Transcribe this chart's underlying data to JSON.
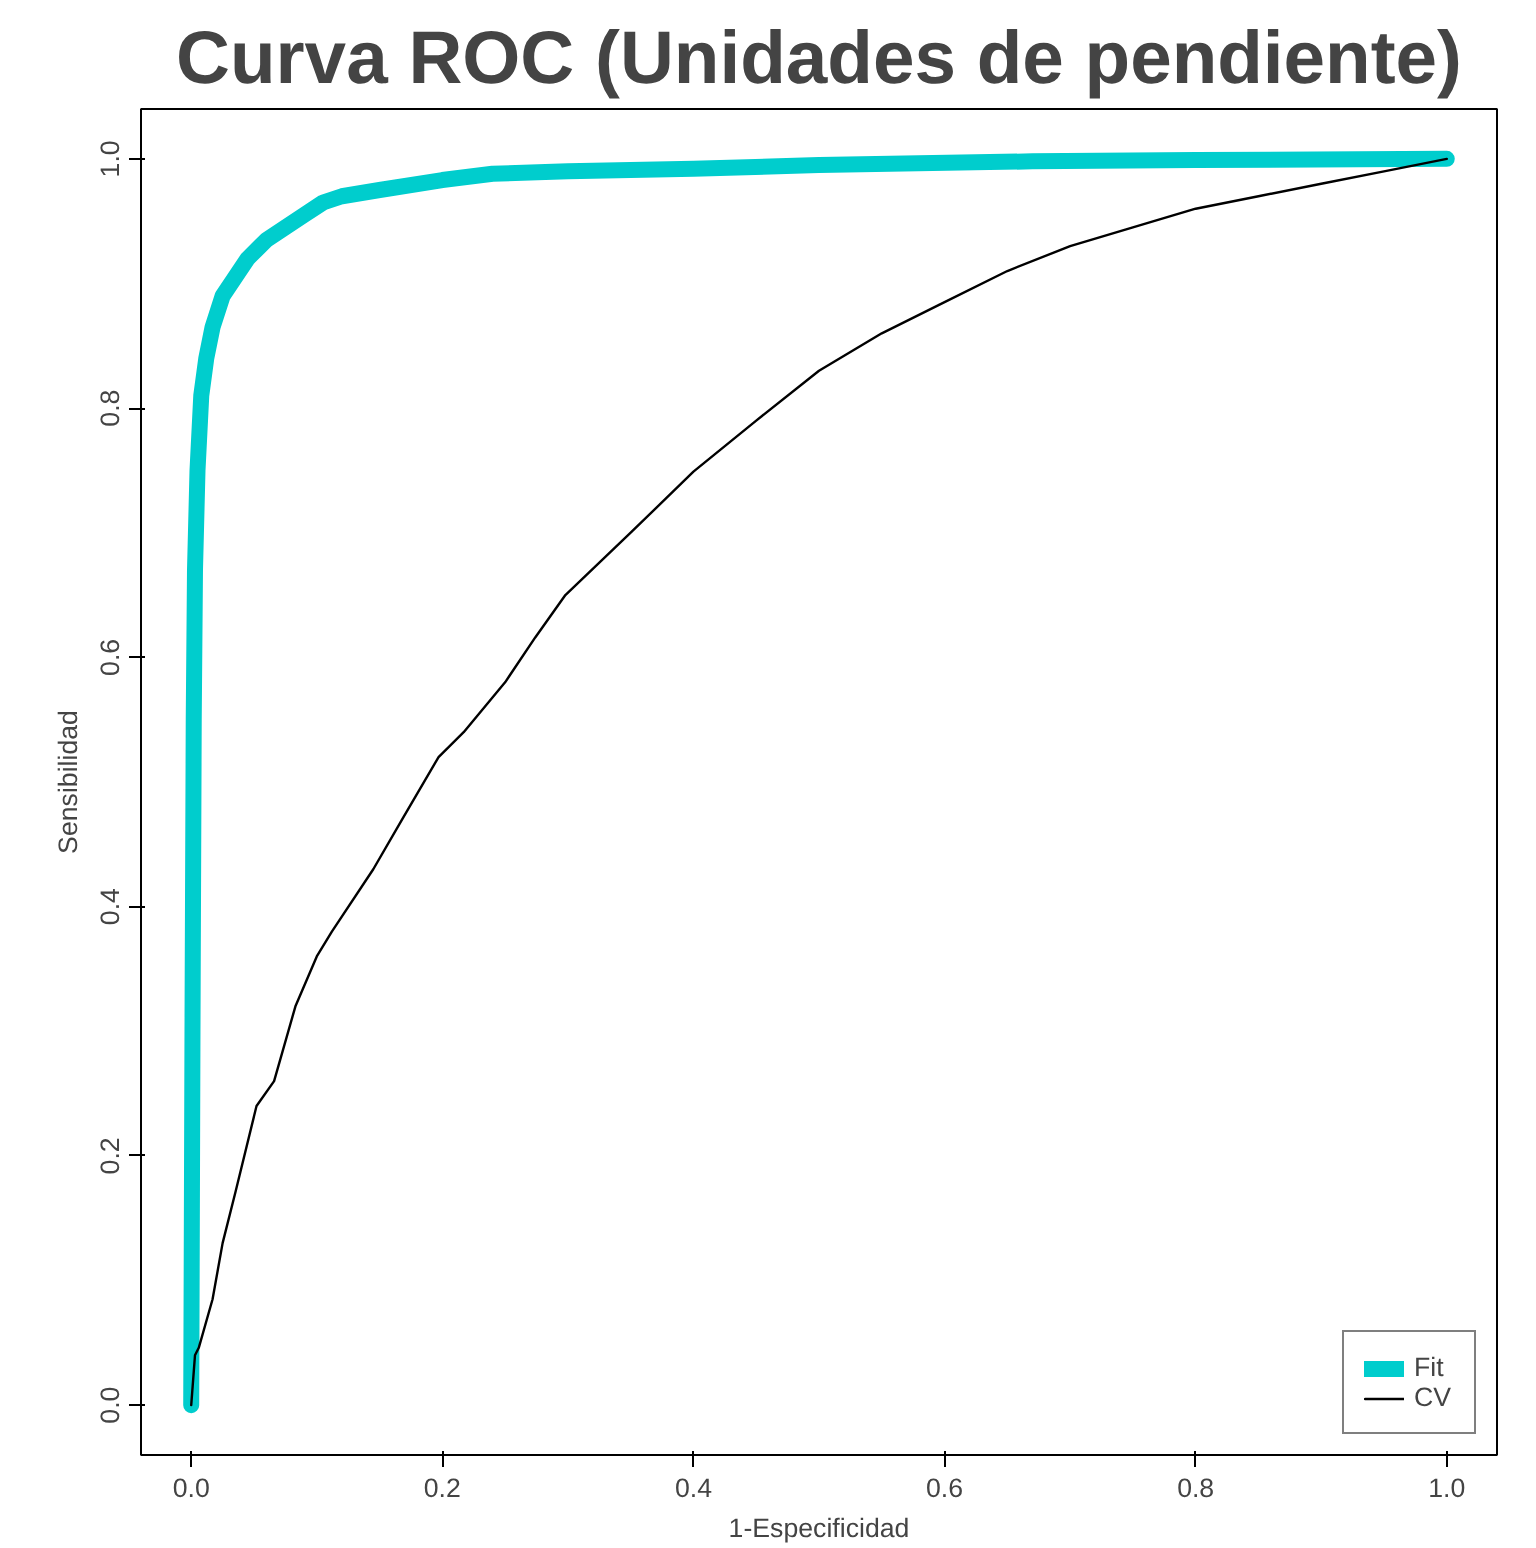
{
  "chart_data": {
    "type": "line",
    "title": "Curva ROC (Unidades de pendiente)",
    "xlabel": "1-Especificidad",
    "ylabel": "Sensibilidad",
    "xlim": [
      -0.04,
      1.04
    ],
    "ylim": [
      -0.04,
      1.04
    ],
    "xticks": [
      {
        "value": 0,
        "label": "0.0"
      },
      0.2,
      0.4,
      0.6,
      0.8,
      {
        "value": 1,
        "label": "1.0"
      }
    ],
    "yticks": [
      {
        "value": 0,
        "label": "0.0"
      },
      0.2,
      0.4,
      0.6,
      0.8,
      {
        "value": 1,
        "label": "1.0"
      }
    ],
    "grid": false,
    "legend": "bottom right",
    "marker": "none",
    "line_style": "solid",
    "series": [
      {
        "name": "Fit",
        "color": "#00cdcd",
        "x": [
          0,
          0.001,
          0.002,
          0.003,
          0.005,
          0.008,
          0.012,
          0.017,
          0.025,
          0.035,
          0.045,
          0.06,
          0.075,
          0.09,
          0.105,
          0.12,
          0.15,
          0.2,
          0.24,
          0.3,
          0.4,
          0.5,
          0.67,
          0.8,
          1
        ],
        "values": [
          0,
          0.3,
          0.55,
          0.67,
          0.75,
          0.81,
          0.84,
          0.865,
          0.89,
          0.905,
          0.92,
          0.935,
          0.945,
          0.955,
          0.965,
          0.97,
          0.975,
          0.983,
          0.988,
          0.99,
          0.992,
          0.995,
          0.998,
          0.999,
          1
        ]
      },
      {
        "name": "CV",
        "color": "#000000",
        "x": [
          0,
          0.003,
          0.006,
          0.017,
          0.025,
          0.035,
          0.052,
          0.066,
          0.083,
          0.1,
          0.112,
          0.145,
          0.168,
          0.197,
          0.217,
          0.25,
          0.274,
          0.298,
          0.35,
          0.4,
          0.45,
          0.5,
          0.55,
          0.6,
          0.65,
          0.7,
          0.75,
          0.8,
          0.85,
          0.9,
          0.95,
          1
        ],
        "values": [
          0,
          0.04,
          0.046,
          0.085,
          0.13,
          0.17,
          0.24,
          0.26,
          0.32,
          0.36,
          0.38,
          0.43,
          0.47,
          0.52,
          0.54,
          0.58,
          0.616,
          0.65,
          0.7,
          0.749,
          0.79,
          0.83,
          0.86,
          0.885,
          0.91,
          0.93,
          0.945,
          0.96,
          0.97,
          0.98,
          0.99,
          1
        ]
      }
    ]
  }
}
